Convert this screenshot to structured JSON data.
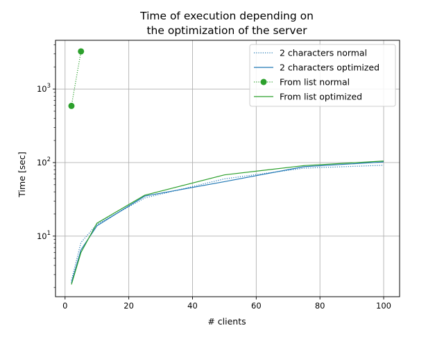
{
  "chart_data": {
    "type": "line",
    "title": "Time of execution depending on\nthe optimization of the server",
    "title_lines": [
      "Time of execution depending on",
      "the optimization of the server"
    ],
    "xlabel": "# clients",
    "ylabel": "Time [sec]",
    "xlim": [
      -3,
      105
    ],
    "ylim": [
      1.5,
      4600
    ],
    "y_scale": "log",
    "grid": true,
    "legend_position": "top-right",
    "x_ticks": [
      {
        "value": 0,
        "label": "0"
      },
      {
        "value": 20,
        "label": "20"
      },
      {
        "value": 40,
        "label": "40"
      },
      {
        "value": 60,
        "label": "60"
      },
      {
        "value": 80,
        "label": "80"
      },
      {
        "value": 100,
        "label": "100"
      }
    ],
    "y_ticks": [
      {
        "value": 10,
        "base": "10",
        "exp": "1"
      },
      {
        "value": 100,
        "base": "10",
        "exp": "2"
      },
      {
        "value": 1000,
        "base": "10",
        "exp": "3"
      }
    ],
    "series": [
      {
        "name": "2 characters normal",
        "color": "#1f77b4",
        "linestyle": "dotted",
        "marker": "none",
        "x": [
          2,
          5,
          10,
          25,
          50,
          75,
          100
        ],
        "y": [
          2.5,
          8.2,
          14.5,
          33,
          60,
          84,
          92
        ]
      },
      {
        "name": "2 characters optimized",
        "color": "#1f77b4",
        "linestyle": "solid",
        "marker": "none",
        "x": [
          2,
          5,
          10,
          25,
          50,
          75,
          100
        ],
        "y": [
          2.3,
          6.5,
          13.8,
          35,
          55,
          88,
          102
        ]
      },
      {
        "name": "From list normal",
        "color": "#2ca02c",
        "linestyle": "dotted",
        "marker": "circle",
        "x": [
          2,
          5
        ],
        "y": [
          590,
          3250
        ]
      },
      {
        "name": "From list optimized",
        "color": "#2ca02c",
        "linestyle": "solid",
        "marker": "none",
        "x": [
          2,
          5,
          10,
          25,
          50,
          75,
          100
        ],
        "y": [
          2.2,
          6.0,
          15.0,
          36,
          68,
          91,
          105
        ]
      }
    ]
  }
}
